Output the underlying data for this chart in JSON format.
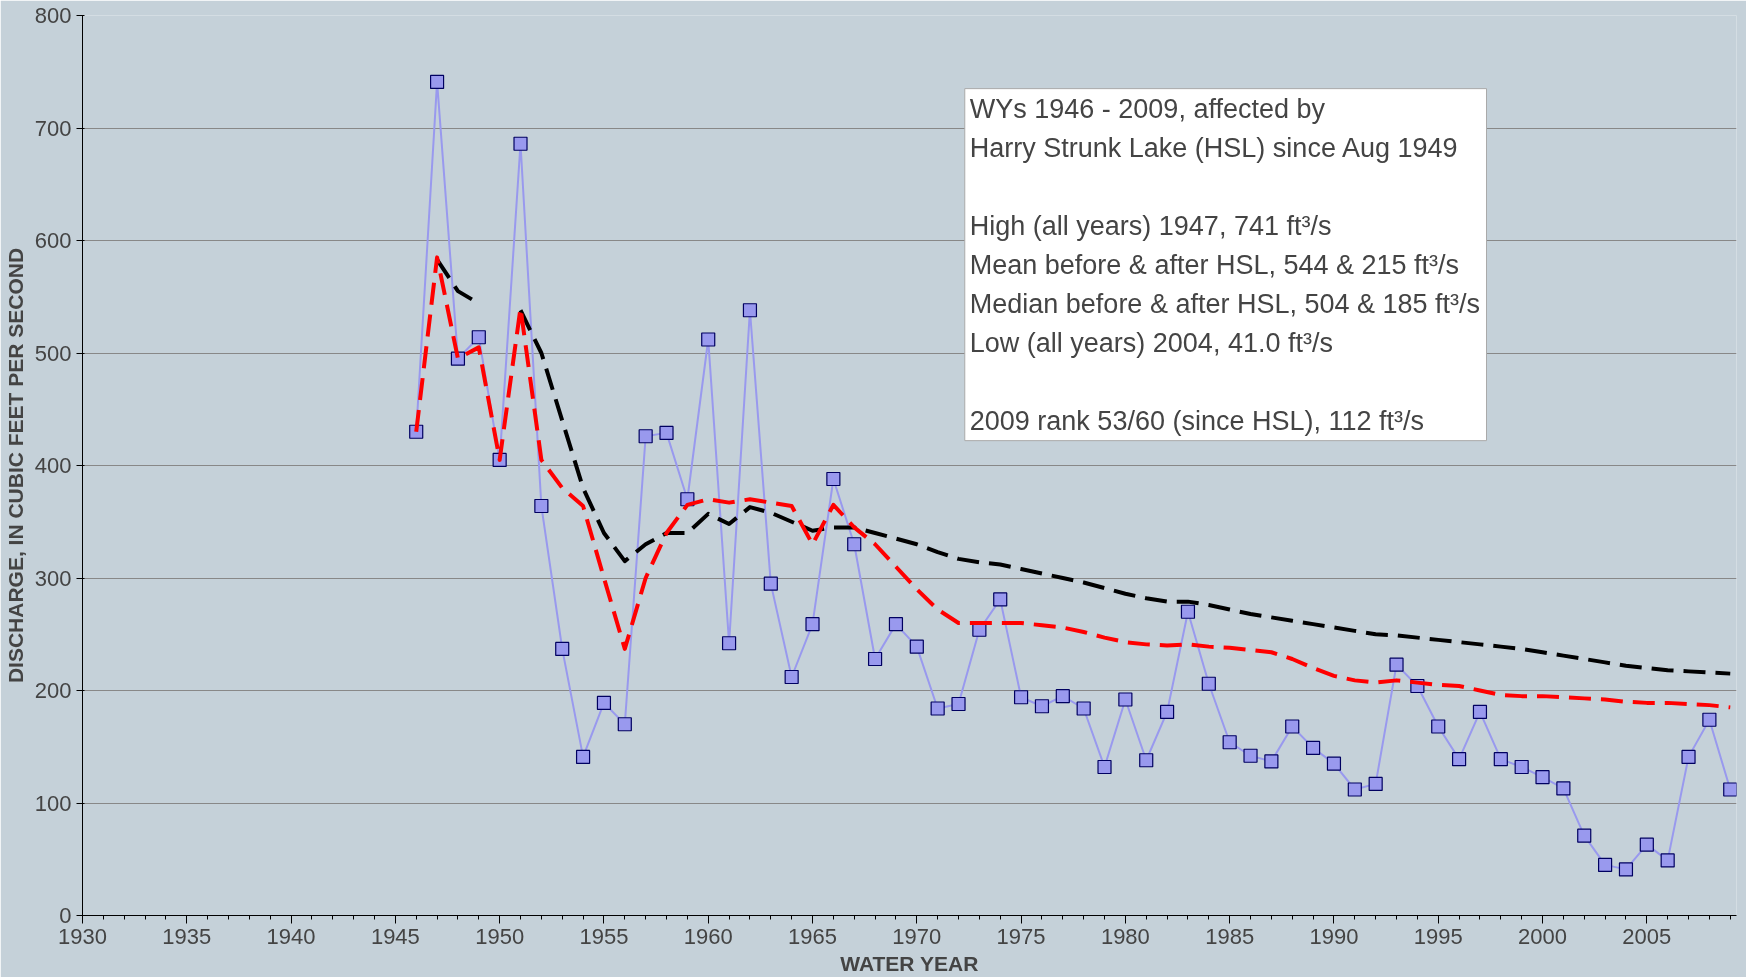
{
  "chart_data": {
    "type": "line",
    "xlabel": "WATER YEAR",
    "ylabel": "DISCHARGE, IN CUBIC FEET PER SECOND",
    "x": [
      1946,
      1947,
      1948,
      1949,
      1950,
      1951,
      1952,
      1953,
      1954,
      1955,
      1956,
      1957,
      1958,
      1959,
      1960,
      1961,
      1962,
      1963,
      1964,
      1965,
      1966,
      1967,
      1968,
      1969,
      1970,
      1971,
      1972,
      1973,
      1974,
      1975,
      1976,
      1977,
      1978,
      1979,
      1980,
      1981,
      1982,
      1983,
      1984,
      1985,
      1986,
      1987,
      1988,
      1989,
      1990,
      1991,
      1992,
      1993,
      1994,
      1995,
      1996,
      1997,
      1998,
      1999,
      2000,
      2001,
      2002,
      2003,
      2004,
      2005,
      2006,
      2007,
      2008,
      2009
    ],
    "series": [
      {
        "color": "#9999ee",
        "marker": "square",
        "line_style": "solid",
        "values": [
          430,
          741,
          495,
          514,
          405,
          686,
          364,
          237,
          141,
          189,
          170,
          426,
          429,
          370,
          512,
          242,
          538,
          295,
          212,
          259,
          388,
          330,
          228,
          259,
          239,
          184,
          188,
          254,
          281,
          194,
          186,
          195,
          184,
          132,
          192,
          138,
          181,
          270,
          206,
          154,
          142,
          137,
          168,
          149,
          135,
          112,
          117,
          223,
          204,
          168,
          139,
          181,
          139,
          132,
          123,
          113,
          71,
          45,
          41,
          63,
          49,
          141,
          174,
          112
        ]
      },
      {
        "color": "#000000",
        "marker": "none",
        "line_style": "dashed",
        "values": [
          null,
          583,
          555,
          544,
          null,
          538,
          500,
          440,
          380,
          340,
          315,
          330,
          340,
          340,
          357,
          348,
          363,
          358,
          350,
          342,
          345,
          345,
          340,
          335,
          330,
          323,
          317,
          314,
          312,
          308,
          304,
          300,
          296,
          291,
          286,
          282,
          279,
          279,
          276,
          272,
          268,
          265,
          262,
          259,
          256,
          253,
          250,
          249,
          247,
          245,
          243,
          241,
          239,
          237,
          234,
          231,
          228,
          225,
          222,
          220,
          218,
          217,
          216,
          215
        ]
      },
      {
        "color": "#ff0000",
        "marker": "none",
        "line_style": "dashed",
        "values": [
          430,
          585,
          495,
          505,
          405,
          540,
          405,
          380,
          364,
          300,
          237,
          300,
          340,
          365,
          370,
          367,
          370,
          367,
          364,
          330,
          365,
          345,
          330,
          310,
          290,
          272,
          260,
          260,
          260,
          260,
          258,
          256,
          252,
          247,
          243,
          241,
          240,
          241,
          239,
          238,
          236,
          234,
          228,
          220,
          213,
          209,
          207,
          209,
          207,
          205,
          204,
          200,
          196,
          195,
          195,
          194,
          193,
          192,
          190,
          189,
          189,
          188,
          187,
          185
        ]
      }
    ],
    "xlim": [
      1930,
      2009.3
    ],
    "ylim": [
      0,
      800
    ],
    "xticks": [
      1930,
      1935,
      1940,
      1945,
      1950,
      1955,
      1960,
      1965,
      1970,
      1975,
      1980,
      1985,
      1990,
      1995,
      2000,
      2005
    ],
    "yticks": [
      0,
      100,
      200,
      300,
      400,
      500,
      600,
      700,
      800
    ],
    "grid": "y",
    "annotations": [
      "WYs 1946 - 2009, affected by\n   Harry Strunk Lake (HSL) since Aug 1949\n\nHigh (all years) 1947, 741 ft³/s\nMean before & after HSL, 544 & 215 ft³/s\nMedian before & after HSL, 504 & 185 ft³/s\nLow (all years) 2004, 41.0 ft³/s\n\n2009 rank 53/60 (since HSL), 112 ft³/s"
    ]
  }
}
